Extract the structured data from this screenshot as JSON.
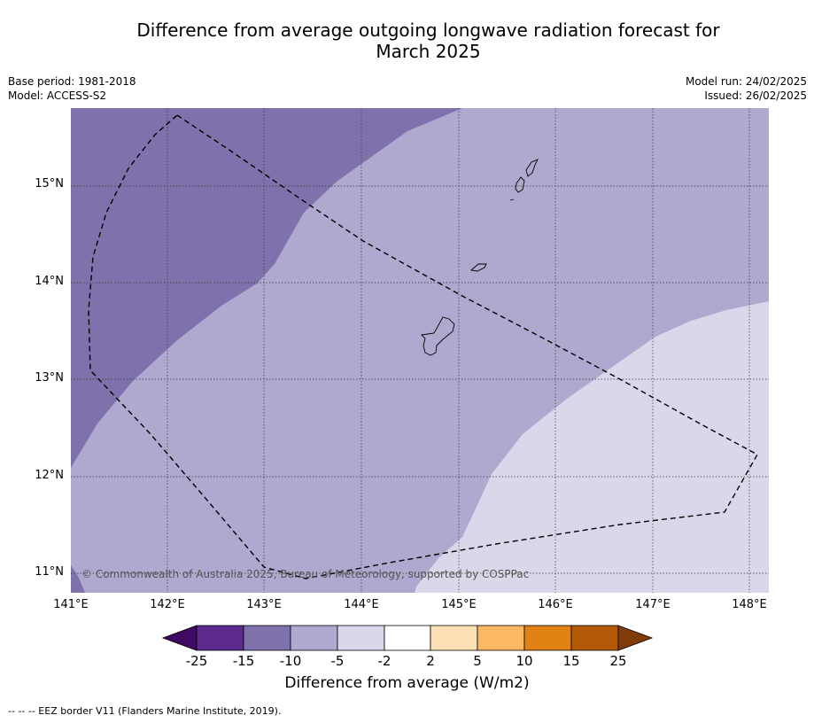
{
  "title_line1": "Difference from average outgoing longwave radiation forecast for",
  "title_line2": "March 2025",
  "base_period": "Base period: 1981-2018",
  "model": "Model: ACCESS-S2",
  "model_run": "Model run: 24/02/2025",
  "issued": "Issued: 26/02/2025",
  "copyright": "© Commonwealth of Australia 2025, Bureau of Meteorology, supported by COSPPac",
  "lat_labels": [
    "15°N",
    "14°N",
    "13°N",
    "12°N",
    "11°N"
  ],
  "lon_labels": [
    "141°E",
    "142°E",
    "143°E",
    "144°E",
    "145°E",
    "146°E",
    "147°E",
    "148°E"
  ],
  "colorbar": {
    "title": "Difference from average (W/m2)",
    "tick_labels": [
      "-25",
      "-15",
      "-10",
      "-5",
      "-2",
      "2",
      "5",
      "10",
      "15",
      "25"
    ],
    "colors": [
      "#3f0a61",
      "#5b2a8c",
      "#7f72ac",
      "#afa9d0",
      "#d8d8ea",
      "#ffffff",
      "#fde0b6",
      "#fdb863",
      "#e08214",
      "#b35806",
      "#7f3b08"
    ]
  },
  "map_colors": {
    "neg_15_10": "#7f72ac",
    "neg_10_5": "#afa9d0",
    "neg_5_2": "#d8d8ea"
  },
  "footnote": "--  --  -- EEZ border V11 (Flanders Marine Institute, 2019)."
}
